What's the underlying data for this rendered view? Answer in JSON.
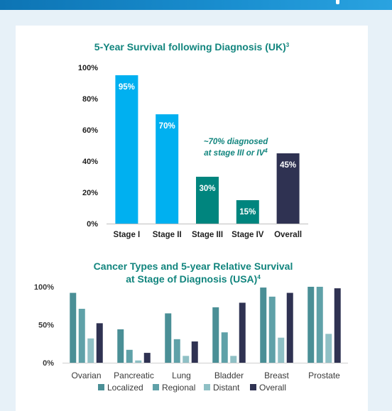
{
  "colors": {
    "background": "#e7f1f8",
    "card": "#ffffff",
    "title": "#12857e",
    "stage_light_blue": "#00b0f0",
    "stage_teal": "#00857e",
    "overall_navy": "#2f3252",
    "localized": "#4a8f96",
    "regional": "#5fa1a8",
    "distant": "#8fc0c5",
    "overall": "#2f3252"
  },
  "chart_data": [
    {
      "type": "bar",
      "title": "5-Year Survival following Diagnosis (UK)",
      "title_sup": "3",
      "categories": [
        "Stage I",
        "Stage II",
        "Stage III",
        "Stage IV",
        "Overall"
      ],
      "values": [
        95,
        70,
        30,
        15,
        45
      ],
      "value_labels": [
        "95%",
        "70%",
        "30%",
        "15%",
        "45%"
      ],
      "colors": [
        "#00b0f0",
        "#00b0f0",
        "#00857e",
        "#00857e",
        "#2f3252"
      ],
      "yticks": [
        "0%",
        "20%",
        "40%",
        "60%",
        "80%",
        "100%"
      ],
      "ylim": [
        0,
        100
      ],
      "annotation_line1": "~70% diagnosed",
      "annotation_line2": "at stage III or IV",
      "annotation_sup": "4",
      "grid": false
    },
    {
      "type": "bar",
      "title_line1": "Cancer Types and 5-year Relative Survival",
      "title_line2": "at Stage of Diagnosis (USA)",
      "title_sup": "4",
      "categories": [
        "Ovarian",
        "Pancreatic",
        "Lung",
        "Bladder",
        "Breast",
        "Prostate"
      ],
      "series": [
        {
          "name": "Localized",
          "values": [
            92,
            44,
            65,
            73,
            99,
            100
          ]
        },
        {
          "name": "Regional",
          "values": [
            71,
            17,
            31,
            40,
            87,
            100
          ]
        },
        {
          "name": "Distant",
          "values": [
            32,
            3,
            9,
            9,
            33,
            38
          ]
        },
        {
          "name": "Overall",
          "values": [
            52,
            13,
            28,
            79,
            92,
            98
          ]
        }
      ],
      "yticks": [
        "0%",
        "50%",
        "100%"
      ],
      "ylim": [
        0,
        100
      ],
      "legend": "bottom",
      "grid": false
    }
  ]
}
